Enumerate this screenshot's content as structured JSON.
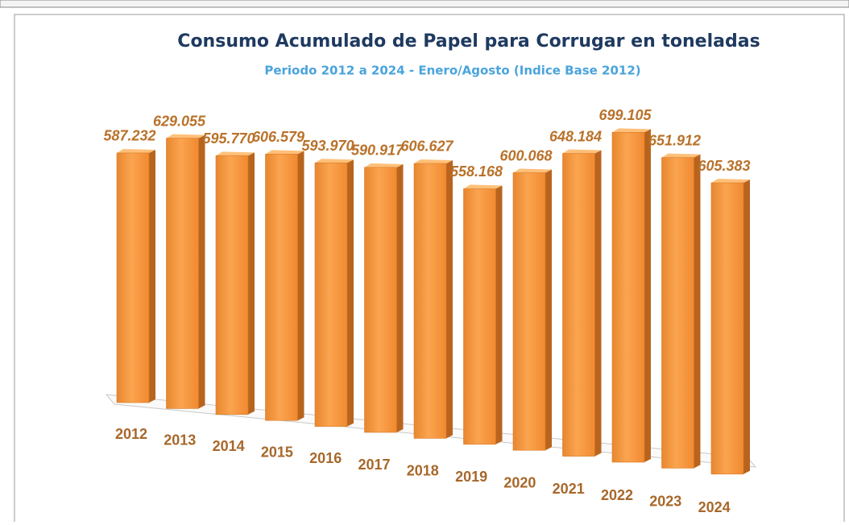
{
  "chart_data": {
    "type": "bar",
    "title": "Consumo Acumulado de Papel para Corrugar en toneladas",
    "subtitle": "Periodo 2012 a 2024 - Enero/Agosto (Indice Base 2012)",
    "categories": [
      "2012",
      "2013",
      "2014",
      "2015",
      "2016",
      "2017",
      "2018",
      "2019",
      "2020",
      "2021",
      "2022",
      "2023",
      "2024"
    ],
    "values": [
      587232,
      629055,
      595770,
      606579,
      593970,
      590917,
      606627,
      558168,
      600068,
      648184,
      699105,
      651912,
      605383
    ],
    "value_labels": [
      "587.232",
      "629.055",
      "595.770",
      "606.579",
      "593.970",
      "590.917",
      "606.627",
      "558.168",
      "600.068",
      "648.184",
      "699.105",
      "651.912",
      "605.383"
    ],
    "color": "#f7963c"
  }
}
